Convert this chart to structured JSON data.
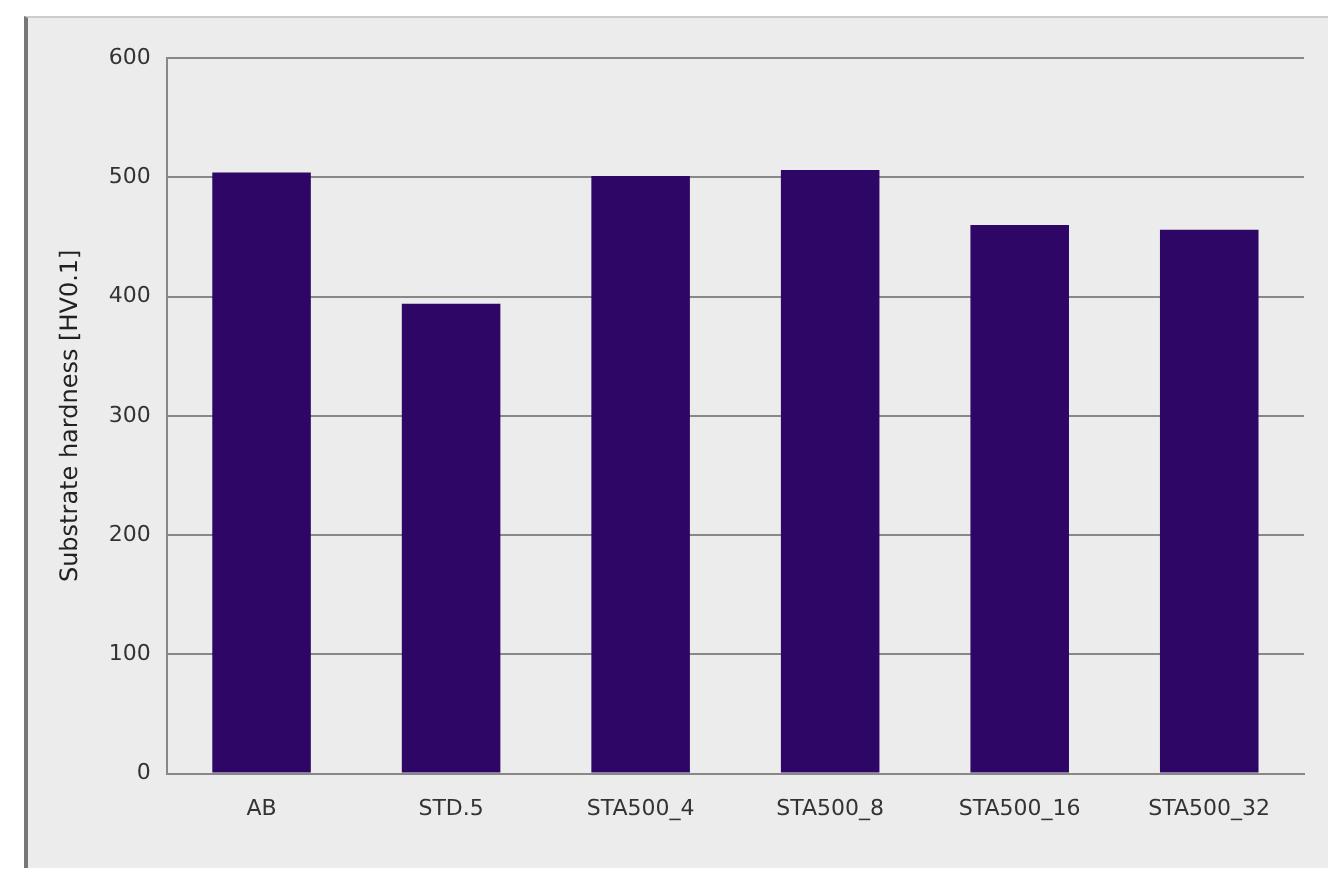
{
  "chart_data": {
    "type": "bar",
    "ylabel": "Substrate hardness [HV0.1]",
    "categories": [
      "AB",
      "STD.5",
      "STA500_4",
      "STA500_8",
      "STA500_16",
      "STA500_32"
    ],
    "values": [
      504,
      394,
      501,
      506,
      460,
      456
    ],
    "color": "#2e0766",
    "ylim": [
      0,
      600
    ],
    "yticks": [
      0,
      100,
      200,
      300,
      400,
      500,
      600
    ],
    "grid": "y",
    "legend": false
  }
}
